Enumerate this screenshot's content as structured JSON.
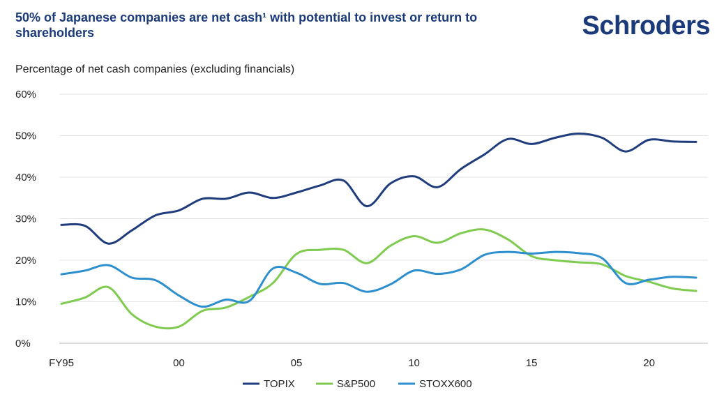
{
  "header": {
    "title": "50% of Japanese companies are net cash¹ with potential to invest or return to shareholders",
    "logo": "Schroders"
  },
  "chart_data": {
    "type": "line",
    "subtitle": "Percentage of net cash companies (excluding financials)",
    "x": [
      1995,
      1996,
      1997,
      1998,
      1999,
      2000,
      2001,
      2002,
      2003,
      2004,
      2005,
      2006,
      2007,
      2008,
      2009,
      2010,
      2011,
      2012,
      2013,
      2014,
      2015,
      2016,
      2017,
      2018,
      2019,
      2020,
      2021,
      2022
    ],
    "x_ticks": [
      {
        "value": 1995,
        "label": "FY95"
      },
      {
        "value": 2000,
        "label": "00"
      },
      {
        "value": 2005,
        "label": "05"
      },
      {
        "value": 2010,
        "label": "10"
      },
      {
        "value": 2015,
        "label": "15"
      },
      {
        "value": 2020,
        "label": "20"
      }
    ],
    "y_ticks": [
      {
        "value": 0,
        "label": "0%"
      },
      {
        "value": 10,
        "label": "10%"
      },
      {
        "value": 20,
        "label": "20%"
      },
      {
        "value": 30,
        "label": "30%"
      },
      {
        "value": 40,
        "label": "40%"
      },
      {
        "value": 50,
        "label": "50%"
      },
      {
        "value": 60,
        "label": "60%"
      }
    ],
    "ylim": [
      0,
      60
    ],
    "xlim": [
      1995,
      2022
    ],
    "series": [
      {
        "name": "TOPIX",
        "color": "#1f3c7c",
        "values": [
          28.5,
          28.3,
          24.0,
          27.2,
          30.8,
          32.0,
          34.8,
          34.8,
          36.3,
          35.0,
          36.3,
          38.0,
          39.2,
          33.0,
          38.5,
          40.2,
          37.6,
          42.0,
          45.5,
          49.2,
          48.0,
          49.5,
          50.5,
          49.5,
          46.2,
          49.0,
          48.6,
          48.5
        ]
      },
      {
        "name": "S&P500",
        "color": "#7ecb4f",
        "values": [
          9.5,
          11.0,
          13.5,
          7.0,
          4.0,
          4.0,
          7.8,
          8.6,
          11.2,
          14.5,
          21.5,
          22.5,
          22.5,
          19.3,
          23.5,
          25.8,
          24.2,
          26.5,
          27.4,
          25.0,
          21.0,
          20.0,
          19.5,
          19.0,
          16.2,
          14.8,
          13.2,
          12.6
        ]
      },
      {
        "name": "STOXX600",
        "color": "#2e8fce",
        "values": [
          16.6,
          17.5,
          18.8,
          15.8,
          15.2,
          11.5,
          8.8,
          10.5,
          10.2,
          18.0,
          17.0,
          14.3,
          14.5,
          12.4,
          14.2,
          17.5,
          16.7,
          17.8,
          21.3,
          22.0,
          21.6,
          22.0,
          21.7,
          20.5,
          14.5,
          15.3,
          16.0,
          15.8
        ]
      }
    ]
  }
}
